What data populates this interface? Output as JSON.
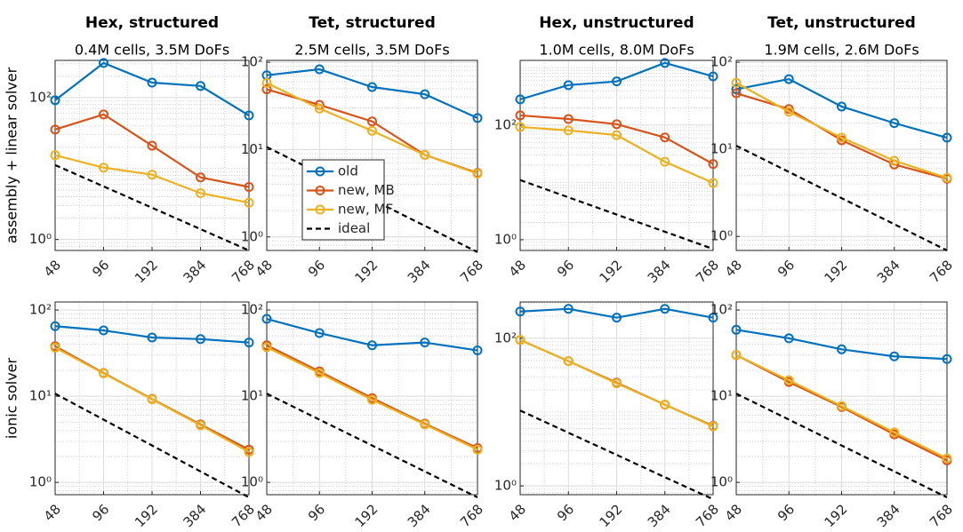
{
  "chart_data": [
    {
      "type": "line",
      "title": "Hex, structured",
      "subtitle": "0.4M cells, 3.5M DoFs",
      "ylabel": "assembly + linear solver",
      "x": [
        48,
        96,
        192,
        384,
        768
      ],
      "xlim": [
        48,
        768
      ],
      "xticks": [
        48,
        96,
        192,
        384,
        768
      ],
      "xscale": "log",
      "ylim": [
        0.7,
        335
      ],
      "yscale": "log",
      "yticks": [
        {
          "value": 1,
          "label": "10⁰"
        },
        {
          "value": 100,
          "label": "10²"
        }
      ],
      "grid": true,
      "minor_grid": true,
      "series": [
        {
          "color": "#0072BD",
          "marker": "circle",
          "values": [
            92,
            308,
            163,
            146,
            56
          ]
        },
        {
          "color": "#D95319",
          "marker": "circle",
          "values": [
            35.5,
            58,
            21,
            7.5,
            5.5
          ]
        },
        {
          "color": "#EDB120",
          "marker": "circle",
          "values": [
            15.4,
            10.3,
            8.2,
            4.5,
            3.3
          ]
        },
        {
          "color": "#000000",
          "dash": true,
          "values": [
            11.2,
            5.6,
            2.8,
            1.4,
            0.7
          ]
        }
      ]
    },
    {
      "type": "line",
      "title": "Tet, structured",
      "subtitle": "2.5M cells, 3.5M DoFs",
      "x": [
        48,
        96,
        192,
        384,
        768
      ],
      "xlim": [
        48,
        768
      ],
      "xticks": [
        48,
        96,
        192,
        384,
        768
      ],
      "xscale": "log",
      "ylim": [
        0.7,
        105
      ],
      "yscale": "log",
      "yticks": [
        {
          "value": 1,
          "label": "10⁰"
        },
        {
          "value": 10,
          "label": "10¹"
        },
        {
          "value": 100,
          "label": "10²"
        }
      ],
      "grid": true,
      "minor_grid": true,
      "legend": "lower left",
      "series": [
        {
          "name": "old",
          "color": "#0072BD",
          "marker": "circle",
          "values": [
            71,
            83,
            52,
            43,
            23
          ]
        },
        {
          "name": "new, MB",
          "color": "#D95319",
          "marker": "circle",
          "values": [
            49,
            32.5,
            21,
            8.7,
            5.4
          ]
        },
        {
          "name": "new, MF",
          "color": "#EDB120",
          "marker": "circle",
          "values": [
            58,
            29.5,
            16.4,
            8.7,
            5.3
          ]
        },
        {
          "name": "ideal",
          "color": "#000000",
          "dash": true,
          "values": [
            10.7,
            5.35,
            2.68,
            1.34,
            0.67
          ]
        }
      ]
    },
    {
      "type": "line",
      "title": "Hex, unstructured",
      "subtitle": "1.0M cells, 8.0M DoFs",
      "x": [
        48,
        96,
        192,
        384,
        768
      ],
      "xlim": [
        48,
        768
      ],
      "xticks": [
        48,
        96,
        192,
        384,
        768
      ],
      "xscale": "log",
      "ylim": [
        0.65,
        1350
      ],
      "yscale": "log",
      "yticks": [
        {
          "value": 1,
          "label": "10⁰"
        },
        {
          "value": 100,
          "label": "10²"
        }
      ],
      "grid": true,
      "minor_grid": true,
      "series": [
        {
          "color": "#0072BD",
          "marker": "circle",
          "values": [
            282,
            500,
            580,
            1220,
            710
          ]
        },
        {
          "color": "#D95319",
          "marker": "circle",
          "values": [
            148,
            128,
            104,
            61,
            21
          ]
        },
        {
          "color": "#EDB120",
          "marker": "circle",
          "values": [
            93,
            81,
            67,
            23,
            9.8
          ]
        },
        {
          "color": "#000000",
          "dash": true,
          "values": [
            11,
            5.5,
            2.75,
            1.38,
            0.69
          ]
        }
      ]
    },
    {
      "type": "line",
      "title": "Tet, unstructured",
      "subtitle": "1.9M cells, 2.6M DoFs",
      "x": [
        48,
        96,
        192,
        384,
        768
      ],
      "xlim": [
        48,
        768
      ],
      "xticks": [
        48,
        96,
        192,
        384,
        768
      ],
      "xscale": "log",
      "ylim": [
        0.69,
        105
      ],
      "yscale": "log",
      "yticks": [
        {
          "value": 1,
          "label": "10⁰"
        },
        {
          "value": 10,
          "label": "10¹"
        },
        {
          "value": 100,
          "label": "10²"
        }
      ],
      "grid": true,
      "minor_grid": true,
      "series": [
        {
          "color": "#0072BD",
          "marker": "circle",
          "values": [
            49,
            64,
            31,
            20,
            13.6
          ]
        },
        {
          "color": "#D95319",
          "marker": "circle",
          "values": [
            44,
            29,
            12.7,
            6.7,
            4.6
          ]
        },
        {
          "color": "#EDB120",
          "marker": "circle",
          "values": [
            58,
            27,
            13.6,
            7.4,
            4.7
          ]
        },
        {
          "color": "#000000",
          "dash": true,
          "values": [
            11,
            5.5,
            2.75,
            1.38,
            0.69
          ]
        }
      ]
    },
    {
      "type": "line",
      "ylabel": "ionic solver",
      "x": [
        48,
        96,
        192,
        384,
        768
      ],
      "xlim": [
        48,
        768
      ],
      "xticks": [
        48,
        96,
        192,
        384,
        768
      ],
      "xscale": "log",
      "ylim": [
        0.72,
        124
      ],
      "yscale": "log",
      "yticks": [
        {
          "value": 1,
          "label": "10⁰"
        },
        {
          "value": 10,
          "label": "10¹"
        },
        {
          "value": 100,
          "label": "10²"
        }
      ],
      "grid": true,
      "minor_grid": true,
      "series": [
        {
          "color": "#0072BD",
          "marker": "circle",
          "values": [
            65,
            58,
            48,
            46,
            42
          ]
        },
        {
          "color": "#D95319",
          "marker": "circle",
          "values": [
            38,
            18.6,
            9.3,
            4.7,
            2.4
          ]
        },
        {
          "color": "#EDB120",
          "marker": "circle",
          "values": [
            36.6,
            18.4,
            9.2,
            4.6,
            2.25
          ]
        },
        {
          "color": "#000000",
          "dash": true,
          "values": [
            10.7,
            5.35,
            2.68,
            1.34,
            0.67
          ]
        }
      ]
    },
    {
      "type": "line",
      "x": [
        48,
        96,
        192,
        384,
        768
      ],
      "xlim": [
        48,
        768
      ],
      "xticks": [
        48,
        96,
        192,
        384,
        768
      ],
      "xscale": "log",
      "ylim": [
        0.72,
        124
      ],
      "yscale": "log",
      "yticks": [
        {
          "value": 1,
          "label": "10⁰"
        },
        {
          "value": 10,
          "label": "10¹"
        },
        {
          "value": 100,
          "label": "10²"
        }
      ],
      "grid": true,
      "minor_grid": true,
      "series": [
        {
          "color": "#0072BD",
          "marker": "circle",
          "values": [
            79,
            54,
            39,
            42,
            34
          ]
        },
        {
          "color": "#D95319",
          "marker": "circle",
          "values": [
            39,
            19.4,
            9.5,
            4.8,
            2.5
          ]
        },
        {
          "color": "#EDB120",
          "marker": "circle",
          "values": [
            37,
            18.6,
            9.1,
            4.7,
            2.4
          ]
        },
        {
          "color": "#000000",
          "dash": true,
          "values": [
            10.7,
            5.35,
            2.68,
            1.34,
            0.67
          ]
        }
      ]
    },
    {
      "type": "line",
      "x": [
        48,
        96,
        192,
        384,
        768
      ],
      "xlim": [
        48,
        768
      ],
      "xticks": [
        48,
        96,
        192,
        384,
        768
      ],
      "xscale": "log",
      "ylim": [
        0.76,
        310
      ],
      "yscale": "log",
      "yticks": [
        {
          "value": 1,
          "label": "10⁰"
        },
        {
          "value": 100,
          "label": "10²"
        }
      ],
      "grid": true,
      "minor_grid": true,
      "series": [
        {
          "color": "#0072BD",
          "marker": "circle",
          "values": [
            230,
            250,
            190,
            250,
            190
          ]
        },
        {
          "color": "#D95319",
          "marker": "circle",
          "values": [
            95,
            49,
            25,
            12.6,
            6.5
          ]
        },
        {
          "color": "#EDB120",
          "marker": "circle",
          "values": [
            95,
            49,
            24.5,
            12.6,
            6.4
          ]
        },
        {
          "color": "#000000",
          "dash": true,
          "values": [
            10.5,
            5.25,
            2.63,
            1.31,
            0.66
          ]
        }
      ]
    },
    {
      "type": "line",
      "x": [
        48,
        96,
        192,
        384,
        768
      ],
      "xlim": [
        48,
        768
      ],
      "xticks": [
        48,
        96,
        192,
        384,
        768
      ],
      "xscale": "log",
      "ylim": [
        0.72,
        124
      ],
      "yscale": "log",
      "yticks": [
        {
          "value": 1,
          "label": "10⁰"
        },
        {
          "value": 10,
          "label": "10¹"
        },
        {
          "value": 100,
          "label": "10²"
        }
      ],
      "grid": true,
      "minor_grid": true,
      "series": [
        {
          "color": "#0072BD",
          "marker": "circle",
          "values": [
            59,
            47,
            35,
            29,
            27
          ]
        },
        {
          "color": "#D95319",
          "marker": "circle",
          "values": [
            30,
            14.6,
            7.5,
            3.6,
            1.8
          ]
        },
        {
          "color": "#EDB120",
          "marker": "circle",
          "values": [
            30,
            15.3,
            7.7,
            3.8,
            1.9
          ]
        },
        {
          "color": "#000000",
          "dash": true,
          "values": [
            10.7,
            5.35,
            2.68,
            1.34,
            0.67
          ]
        }
      ]
    }
  ]
}
